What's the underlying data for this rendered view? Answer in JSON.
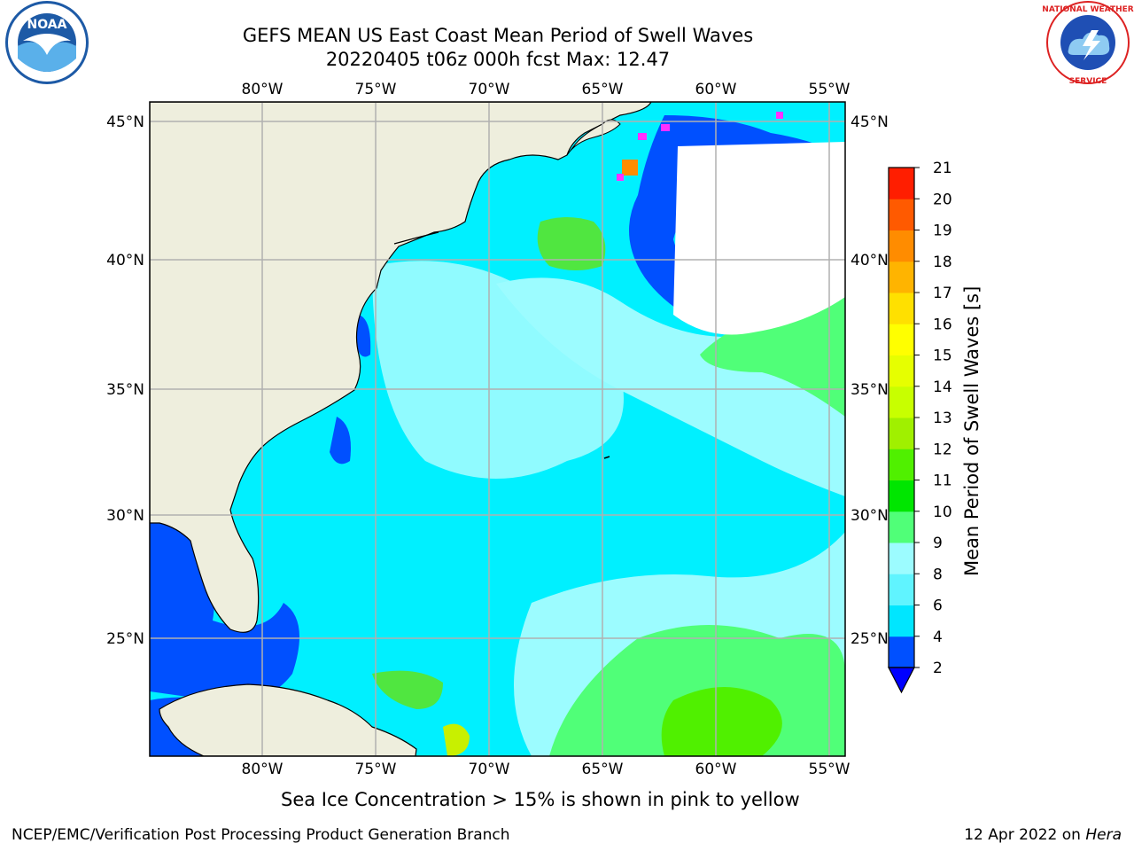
{
  "header": {
    "title": "GEFS MEAN US East Coast Mean Period of Swell Waves",
    "subtitle": "20220405 t06z 000h fcst   Max: 12.47"
  },
  "logos": {
    "left": "NOAA",
    "right_text": "NATIONAL WEATHER SERVICE"
  },
  "map": {
    "lon_ticks": [
      "80°W",
      "75°W",
      "70°W",
      "65°W",
      "60°W",
      "55°W"
    ],
    "lat_ticks": [
      "45°N",
      "40°N",
      "35°N",
      "30°N",
      "25°N"
    ],
    "land_color": "#eeeedd",
    "missing_color": "#ffffff"
  },
  "colorbar": {
    "label": "Mean Period of Swell Waves [s]",
    "ticks": [
      "2",
      "4",
      "6",
      "8",
      "9",
      "10",
      "11",
      "12",
      "13",
      "14",
      "15",
      "16",
      "17",
      "18",
      "19",
      "20",
      "21"
    ],
    "colors": [
      "#0050ff",
      "#00e6ff",
      "#60f4ff",
      "#9cfcff",
      "#50ff78",
      "#00e600",
      "#50f000",
      "#a0f000",
      "#c8ff00",
      "#e6ff00",
      "#ffff00",
      "#ffe000",
      "#ffb400",
      "#ff8c00",
      "#ff5a00",
      "#ff1e00"
    ],
    "under_color": "#0000ff"
  },
  "caption": "Sea Ice Concentration > 15% is shown in pink to yellow",
  "footer": {
    "left": "NCEP/EMC/Verification Post Processing Product Generation Branch",
    "date": "12 Apr 2022 on ",
    "host": "Hera"
  }
}
